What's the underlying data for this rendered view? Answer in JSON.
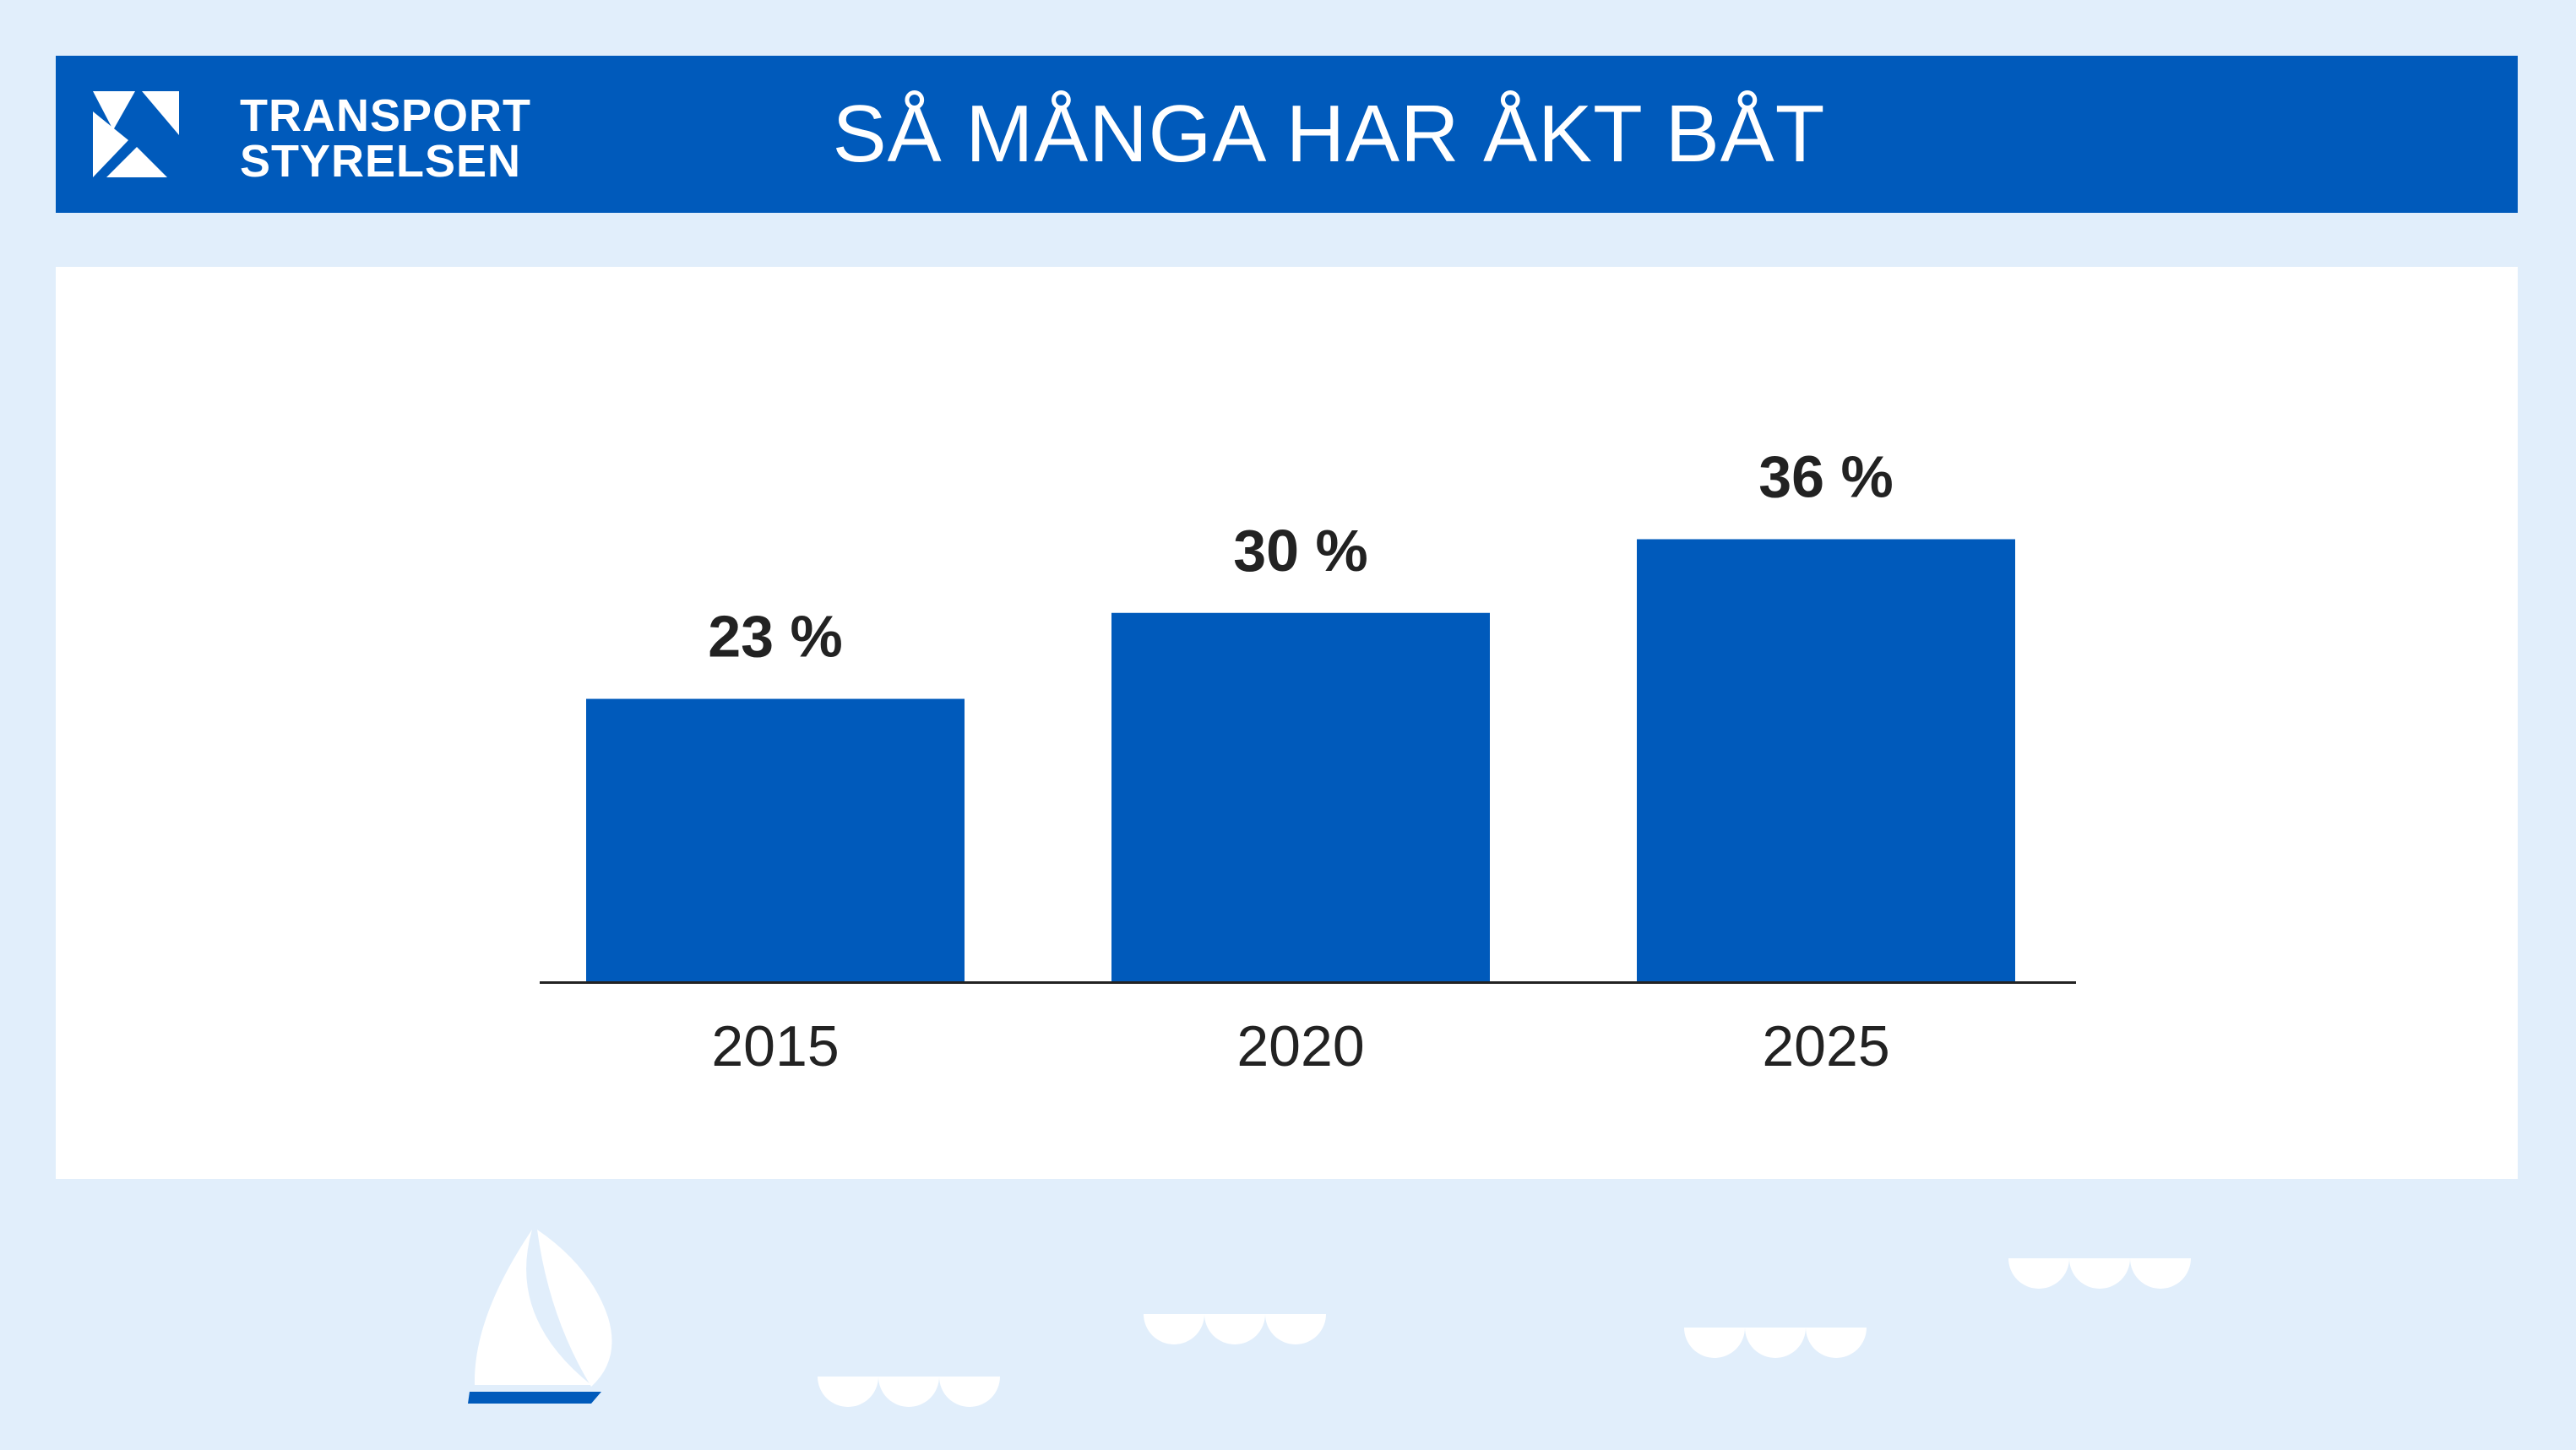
{
  "header": {
    "logo_line1": "TRANSPORT",
    "logo_line2": "STYRELSEN",
    "title": "SÅ MÅNGA HAR ÅKT BÅT"
  },
  "colors": {
    "brand_blue": "#005abb",
    "background": "#e1eefb",
    "card": "#ffffff",
    "text": "#222222"
  },
  "chart_data": {
    "type": "bar",
    "title": "SÅ MÅNGA HAR ÅKT BÅT",
    "xlabel": "",
    "ylabel": "",
    "categories": [
      "2015",
      "2020",
      "2025"
    ],
    "values": [
      23,
      30,
      36
    ],
    "data_labels": [
      "23 %",
      "30 %",
      "36 %"
    ],
    "unit": "%",
    "ylim": [
      0,
      48
    ],
    "grid": false,
    "legend": "none",
    "bar_color": "#005abb"
  }
}
